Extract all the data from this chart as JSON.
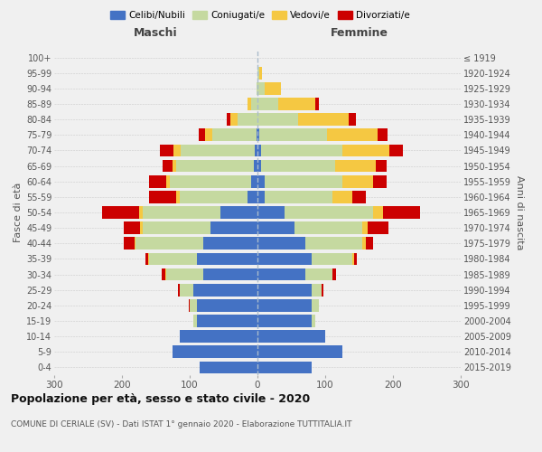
{
  "age_groups": [
    "0-4",
    "5-9",
    "10-14",
    "15-19",
    "20-24",
    "25-29",
    "30-34",
    "35-39",
    "40-44",
    "45-49",
    "50-54",
    "55-59",
    "60-64",
    "65-69",
    "70-74",
    "75-79",
    "80-84",
    "85-89",
    "90-94",
    "95-99",
    "100+"
  ],
  "birth_years": [
    "2015-2019",
    "2010-2014",
    "2005-2009",
    "2000-2004",
    "1995-1999",
    "1990-1994",
    "1985-1989",
    "1980-1984",
    "1975-1979",
    "1970-1974",
    "1965-1969",
    "1960-1964",
    "1955-1959",
    "1950-1954",
    "1945-1949",
    "1940-1944",
    "1935-1939",
    "1930-1934",
    "1925-1929",
    "1920-1924",
    "≤ 1919"
  ],
  "males": {
    "celibi": [
      85,
      125,
      115,
      90,
      90,
      95,
      80,
      90,
      80,
      70,
      55,
      15,
      10,
      5,
      4,
      2,
      0,
      0,
      0,
      0,
      0
    ],
    "coniugati": [
      0,
      0,
      0,
      5,
      10,
      20,
      55,
      70,
      100,
      100,
      115,
      100,
      120,
      115,
      110,
      65,
      30,
      10,
      2,
      0,
      0
    ],
    "vedovi": [
      0,
      0,
      0,
      0,
      0,
      0,
      1,
      1,
      2,
      3,
      5,
      5,
      5,
      5,
      10,
      10,
      10,
      5,
      0,
      0,
      0
    ],
    "divorziati": [
      0,
      0,
      0,
      0,
      2,
      3,
      5,
      5,
      15,
      25,
      55,
      40,
      25,
      15,
      20,
      10,
      5,
      0,
      0,
      0,
      0
    ]
  },
  "females": {
    "nubili": [
      80,
      125,
      100,
      80,
      80,
      80,
      70,
      80,
      70,
      55,
      40,
      10,
      10,
      5,
      5,
      2,
      0,
      0,
      0,
      0,
      0
    ],
    "coniugate": [
      0,
      0,
      0,
      5,
      10,
      15,
      40,
      60,
      85,
      100,
      130,
      100,
      115,
      110,
      120,
      100,
      60,
      30,
      10,
      2,
      0
    ],
    "vedove": [
      0,
      0,
      0,
      0,
      0,
      0,
      1,
      2,
      5,
      8,
      15,
      30,
      45,
      60,
      70,
      75,
      75,
      55,
      25,
      5,
      0
    ],
    "divorziate": [
      0,
      0,
      0,
      0,
      0,
      2,
      5,
      5,
      10,
      30,
      55,
      20,
      20,
      15,
      20,
      15,
      10,
      5,
      0,
      0,
      0
    ]
  },
  "colors": {
    "celibi": "#4472c4",
    "coniugati": "#c5d9a0",
    "vedovi": "#f5c842",
    "divorziati": "#cc0000"
  },
  "xlim": 300,
  "title": "Popolazione per età, sesso e stato civile - 2020",
  "subtitle": "COMUNE DI CERIALE (SV) - Dati ISTAT 1° gennaio 2020 - Elaborazione TUTTITALIA.IT",
  "ylabel_left": "Fasce di età",
  "ylabel_right": "Anni di nascita",
  "xlabel_left": "Maschi",
  "xlabel_right": "Femmine",
  "legend_labels": [
    "Celibi/Nubili",
    "Coniugati/e",
    "Vedovi/e",
    "Divorziati/e"
  ],
  "bg_color": "#f0f0f0"
}
